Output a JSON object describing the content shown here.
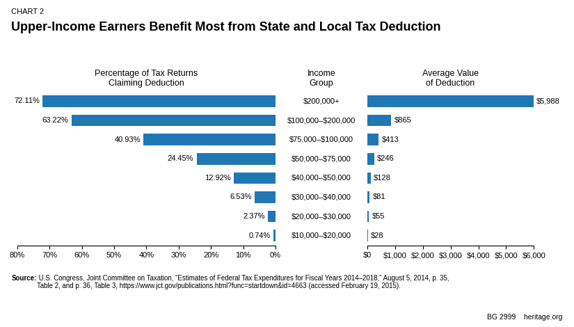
{
  "chart_label": "CHART 2",
  "title": "Upper-Income Earners Benefit Most from State and Local Tax Deduction",
  "category_title": "Income\nGroup",
  "source_label": "Source:",
  "source": " U.S. Congress, Joint Committee on Taxation, “Estimates of Federal Tax Expenditures for Fiscal Years 2014–2018,” August 5, 2014, p. 35,\nTable 2, and p. 36, Table 3, https://www.jct.gov/publications.html?func=startdown&id=4663 (accessed February 19, 2015).",
  "footer": "BG 2999    heritage.org",
  "chart_data": [
    {
      "type": "bar",
      "orientation": "horizontal",
      "title": "Percentage of Tax Returns\nClaiming Deduction",
      "categories": [
        "$200,000+",
        "$100,000–$200,000",
        "$75,000–$100,000",
        "$50,000–$75,000",
        "$40,000–$50,000",
        "$30,000–$40,000",
        "$20,000–$30,000",
        "$10,000–$20,000"
      ],
      "values": [
        72.11,
        63.22,
        40.93,
        24.45,
        12.92,
        6.53,
        2.37,
        0.74
      ],
      "value_labels": [
        "72.11%",
        "63.22%",
        "40.93%",
        "24.45%",
        "12.92%",
        "6.53%",
        "2.37%",
        "0.74%"
      ],
      "data_labels": true,
      "xlim": [
        80,
        0
      ],
      "xticks": [
        {
          "value": 80,
          "label": "80%"
        },
        {
          "value": 70,
          "label": "70%"
        },
        {
          "value": 60,
          "label": "60%"
        },
        {
          "value": 50,
          "label": "50%"
        },
        {
          "value": 40,
          "label": "40%"
        },
        {
          "value": 30,
          "label": "30%"
        },
        {
          "value": 20,
          "label": "20%"
        },
        {
          "value": 10,
          "label": "10%"
        },
        {
          "value": 0,
          "label": "0%"
        }
      ],
      "tick_labels": "x",
      "grid": false
    },
    {
      "type": "bar",
      "orientation": "horizontal",
      "title": "Average Value\nof Deduction",
      "categories": [
        "$200,000+",
        "$100,000–$200,000",
        "$75,000–$100,000",
        "$50,000–$75,000",
        "$40,000–$50,000",
        "$30,000–$40,000",
        "$20,000–$30,000",
        "$10,000–$20,000"
      ],
      "values": [
        5988,
        865,
        413,
        246,
        128,
        81,
        55,
        28
      ],
      "value_labels": [
        "$5,988",
        "$865",
        "$413",
        "$246",
        "$128",
        "$81",
        "$55",
        "$28"
      ],
      "data_labels": true,
      "xlim": [
        0,
        6000
      ],
      "xticks": [
        {
          "value": 0,
          "label": "$0"
        },
        {
          "value": 1000,
          "label": "$1,000"
        },
        {
          "value": 2000,
          "label": "$2,000"
        },
        {
          "value": 3000,
          "label": "$3,000"
        },
        {
          "value": 4000,
          "label": "$4,000"
        },
        {
          "value": 5000,
          "label": "$5,000"
        },
        {
          "value": 6000,
          "label": "$6,000"
        }
      ],
      "tick_labels": "x",
      "grid": false
    }
  ]
}
